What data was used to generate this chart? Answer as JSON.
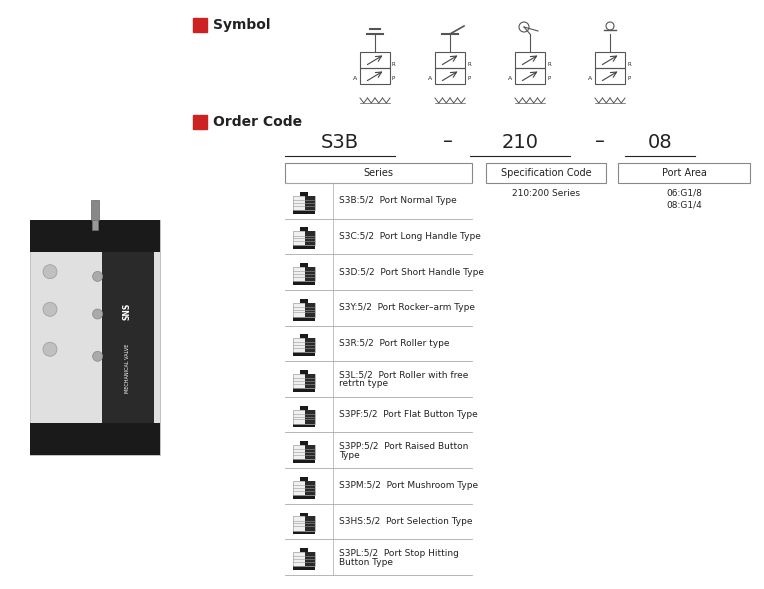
{
  "title_symbol": "Symbol",
  "title_order_code": "Order Code",
  "header_color": "#cc2222",
  "bg_color": "#ffffff",
  "text_color": "#222222",
  "table_headers": [
    "Series",
    "Specification Code",
    "Port Area"
  ],
  "spec_code_values": [
    "210:200 Series"
  ],
  "port_area_values": [
    "06:G1/8",
    "08:G1/4"
  ],
  "series_rows": [
    "S3B:5/2  Port Normal Type",
    "S3C:5/2  Port Long Handle Type",
    "S3D:5/2  Port Short Handle Type",
    "S3Y:5/2  Port Rocker–arm Type",
    "S3R:5/2  Port Roller type",
    "S3L:5/2  Port Roller with free\nretrtn type",
    "S3PF:5/2  Port Flat Button Type",
    "S3PP:5/2  Port Raised Button\nType",
    "S3PM:5/2  Port Mushroom Type",
    "S3HS:5/2  Port Selection Type",
    "S3PL:5/2  Port Stop Hitting\nButton Type"
  ],
  "font_size_title": 10,
  "font_size_body": 7,
  "font_size_order": 13,
  "font_size_small": 6.5
}
